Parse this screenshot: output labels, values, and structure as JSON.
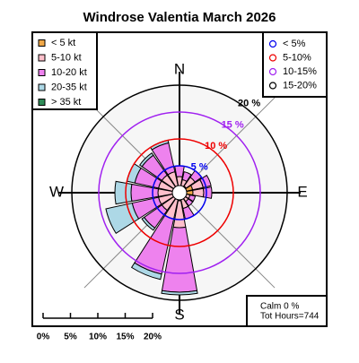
{
  "chart_data": {
    "type": "windrose",
    "title": "Windrose  Valentia March 2026",
    "categories": [
      "N",
      null,
      null,
      null,
      "E",
      null,
      null,
      null,
      "S",
      null,
      null,
      null,
      "W",
      null,
      null,
      null
    ],
    "series": [
      {
        "name": "< 5  kt",
        "color": "#f0a848",
        "values": [
          1,
          1,
          1.5,
          2.5,
          2.5,
          1,
          1,
          1,
          1.5,
          1,
          1,
          1,
          1,
          1,
          1,
          1
        ]
      },
      {
        "name": "5-10 kt",
        "color": "#ffc0cb",
        "values": [
          2,
          1.5,
          2,
          2,
          2,
          1,
          1,
          2,
          5,
          4,
          3,
          3,
          3,
          3,
          3,
          3
        ]
      },
      {
        "name": "10-20 kt",
        "color": "#ee82ee",
        "values": [
          2,
          1.5,
          1.5,
          1.5,
          1.5,
          1,
          1,
          2,
          12,
          10.5,
          4,
          5,
          5,
          4.5,
          4.5,
          5.5
        ]
      },
      {
        "name": "20-35 kt",
        "color": "#add8e6",
        "values": [
          0,
          0,
          0,
          0,
          0,
          0,
          0,
          0,
          0.5,
          1,
          0.5,
          5,
          3,
          1.5,
          0.5,
          0.5
        ]
      },
      {
        "name": "> 35 kt",
        "color": "#2e8b57",
        "values": [
          0,
          0,
          0,
          0,
          0,
          0,
          0,
          0,
          0,
          0,
          0,
          0,
          0,
          0,
          0,
          0
        ]
      }
    ],
    "rlim": [
      0,
      20
    ],
    "rticks": [
      {
        "value": 5,
        "label": "5 %"
      },
      {
        "value": 10,
        "label": "10 %"
      },
      {
        "value": 15,
        "label": "15 %"
      },
      {
        "value": 20,
        "label": "20 %"
      }
    ],
    "ring_colors": [
      "#0000ee",
      "#ee0000",
      "#a020f0",
      "#000000"
    ],
    "ring_legend": [
      "< 5%",
      "5-10%",
      "10-15%",
      "15-20%"
    ],
    "scale_ticks": [
      {
        "value": 0,
        "label": "0%"
      },
      {
        "value": 5,
        "label": "5%"
      },
      {
        "value": 10,
        "label": "10%"
      },
      {
        "value": 15,
        "label": "15%"
      },
      {
        "value": 20,
        "label": "20%"
      }
    ],
    "calm": "Calm 0 %",
    "total": "Tot Hours=744"
  }
}
